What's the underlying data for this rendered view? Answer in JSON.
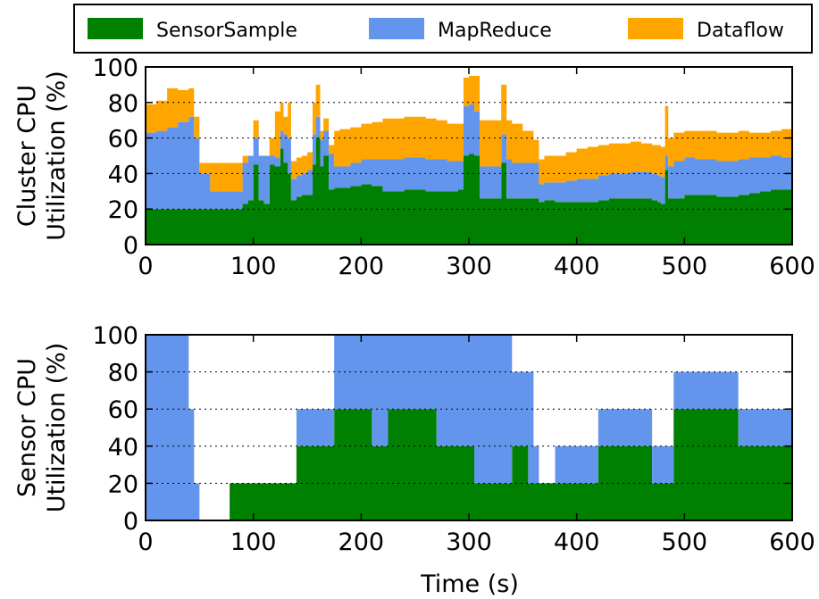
{
  "colors": {
    "SensorSample": "#008000",
    "MapReduce": "#6495ed",
    "Dataflow": "#ffa500"
  },
  "legend": {
    "items": [
      "SensorSample",
      "MapReduce",
      "Dataflow"
    ],
    "placement": "top"
  },
  "chart_data": [
    {
      "type": "area",
      "stacked": true,
      "step": true,
      "xlabel": "",
      "ylabel": "Cluster CPU\nUtilization (%)",
      "xlim": [
        0,
        600
      ],
      "ylim": [
        0,
        100
      ],
      "xticks": [
        0,
        100,
        200,
        300,
        400,
        500,
        600
      ],
      "yticks": [
        0,
        20,
        40,
        60,
        80,
        100
      ],
      "grid": "horizontal dotted",
      "x": [
        0,
        10,
        20,
        30,
        40,
        45,
        50,
        60,
        70,
        80,
        90,
        95,
        100,
        105,
        110,
        115,
        120,
        125,
        128,
        132,
        135,
        140,
        145,
        150,
        155,
        158,
        162,
        165,
        170,
        175,
        180,
        190,
        200,
        210,
        220,
        230,
        240,
        250,
        260,
        270,
        280,
        285,
        290,
        295,
        300,
        305,
        310,
        320,
        325,
        330,
        335,
        340,
        350,
        360,
        365,
        370,
        380,
        390,
        400,
        410,
        420,
        430,
        440,
        450,
        460,
        470,
        475,
        478,
        482,
        485,
        490,
        500,
        510,
        520,
        530,
        540,
        550,
        560,
        570,
        580,
        590,
        600
      ],
      "series": [
        {
          "name": "SensorSample",
          "values": [
            20,
            20,
            20,
            20,
            20,
            20,
            20,
            20,
            20,
            20,
            23,
            25,
            45,
            25,
            23,
            45,
            44,
            54,
            46,
            40,
            25,
            27,
            28,
            28,
            45,
            60,
            44,
            50,
            31,
            32,
            32,
            33,
            34,
            33,
            30,
            30,
            31,
            31,
            30,
            30,
            30,
            30,
            31,
            50,
            51,
            50,
            26,
            26,
            26,
            46,
            26,
            26,
            26,
            26,
            24,
            25,
            24,
            24,
            24,
            24,
            25,
            26,
            26,
            26,
            26,
            25,
            24,
            23,
            42,
            26,
            26,
            28,
            28,
            28,
            27,
            27,
            28,
            29,
            30,
            31,
            31,
            31
          ]
        },
        {
          "name": "MapReduce",
          "values": [
            43,
            44,
            46,
            49,
            52,
            40,
            20,
            10,
            10,
            10,
            23,
            25,
            15,
            25,
            27,
            5,
            5,
            10,
            16,
            20,
            12,
            12,
            12,
            14,
            17,
            12,
            15,
            14,
            20,
            12,
            12,
            13,
            14,
            15,
            18,
            18,
            18,
            18,
            18,
            18,
            17,
            17,
            16,
            28,
            28,
            25,
            18,
            18,
            18,
            16,
            22,
            20,
            20,
            20,
            10,
            10,
            11,
            12,
            13,
            13,
            14,
            14,
            14,
            15,
            15,
            15,
            15,
            15,
            8,
            18,
            21,
            21,
            20,
            20,
            20,
            20,
            20,
            20,
            19,
            19,
            18,
            18
          ]
        },
        {
          "name": "Dataflow",
          "values": [
            16,
            17,
            22,
            18,
            16,
            12,
            6,
            16,
            16,
            16,
            4,
            0,
            10,
            0,
            0,
            10,
            26,
            16,
            10,
            20,
            10,
            10,
            10,
            10,
            18,
            18,
            5,
            7,
            5,
            20,
            21,
            20,
            20,
            21,
            23,
            23,
            23,
            23,
            23,
            22,
            21,
            21,
            21,
            16,
            16,
            20,
            26,
            26,
            26,
            28,
            22,
            22,
            18,
            13,
            14,
            15,
            15,
            16,
            17,
            18,
            17,
            17,
            17,
            17,
            16,
            16,
            17,
            17,
            28,
            16,
            16,
            15,
            16,
            16,
            16,
            16,
            16,
            14,
            14,
            14,
            16,
            16
          ]
        }
      ]
    },
    {
      "type": "area",
      "stacked": true,
      "step": true,
      "xlabel": "Time (s)",
      "ylabel": "Sensor CPU\nUtilization (%)",
      "xlim": [
        0,
        600
      ],
      "ylim": [
        0,
        100
      ],
      "xticks": [
        0,
        100,
        200,
        300,
        400,
        500,
        600
      ],
      "yticks": [
        0,
        20,
        40,
        60,
        80,
        100
      ],
      "grid": "horizontal dotted",
      "x": [
        0,
        40,
        45,
        50,
        78,
        100,
        135,
        140,
        175,
        210,
        225,
        235,
        270,
        305,
        310,
        340,
        355,
        360,
        365,
        380,
        390,
        400,
        420,
        450,
        470,
        490,
        510,
        550,
        560,
        600
      ],
      "series": [
        {
          "name": "SensorSample",
          "values": [
            0,
            0,
            0,
            0,
            20,
            20,
            20,
            40,
            60,
            40,
            60,
            60,
            40,
            20,
            20,
            40,
            20,
            20,
            20,
            20,
            20,
            20,
            40,
            40,
            20,
            60,
            60,
            40,
            40,
            40
          ]
        },
        {
          "name": "MapReduce",
          "values": [
            100,
            60,
            20,
            0,
            0,
            0,
            0,
            20,
            40,
            60,
            40,
            40,
            60,
            80,
            80,
            40,
            60,
            20,
            0,
            20,
            20,
            20,
            20,
            20,
            20,
            20,
            20,
            20,
            20,
            20
          ]
        },
        {
          "name": "Dataflow",
          "values": [
            0,
            0,
            0,
            0,
            0,
            0,
            0,
            0,
            0,
            0,
            0,
            0,
            0,
            0,
            0,
            0,
            0,
            0,
            0,
            0,
            0,
            0,
            0,
            0,
            0,
            0,
            0,
            0,
            0,
            0
          ]
        }
      ]
    }
  ]
}
